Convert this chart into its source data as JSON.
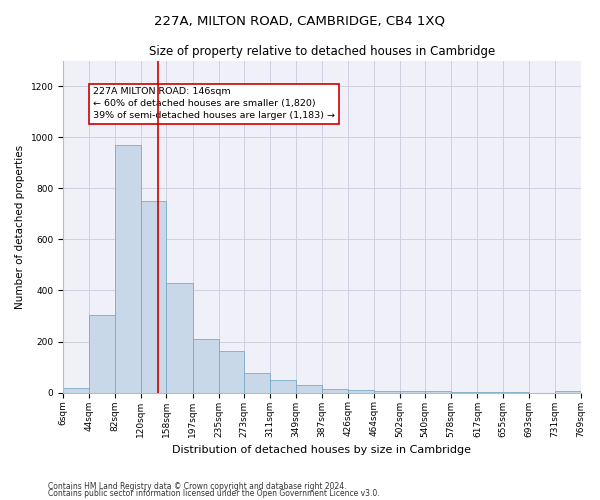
{
  "title": "227A, MILTON ROAD, CAMBRIDGE, CB4 1XQ",
  "subtitle": "Size of property relative to detached houses in Cambridge",
  "xlabel": "Distribution of detached houses by size in Cambridge",
  "ylabel": "Number of detached properties",
  "footnote1": "Contains HM Land Registry data © Crown copyright and database right 2024.",
  "footnote2": "Contains public sector information licensed under the Open Government Licence v3.0.",
  "bar_color": "#c8d8e8",
  "bar_edge_color": "#7aaac8",
  "annotation_line1": "227A MILTON ROAD: 146sqm",
  "annotation_line2": "← 60% of detached houses are smaller (1,820)",
  "annotation_line3": "39% of semi-detached houses are larger (1,183) →",
  "vline_x": 146,
  "vline_color": "#cc0000",
  "bins": [
    6,
    44,
    82,
    120,
    158,
    197,
    235,
    273,
    311,
    349,
    387,
    426,
    464,
    502,
    540,
    578,
    617,
    655,
    693,
    731,
    769
  ],
  "bin_labels": [
    "6sqm",
    "44sqm",
    "82sqm",
    "120sqm",
    "158sqm",
    "197sqm",
    "235sqm",
    "273sqm",
    "311sqm",
    "349sqm",
    "387sqm",
    "426sqm",
    "464sqm",
    "502sqm",
    "540sqm",
    "578sqm",
    "617sqm",
    "655sqm",
    "693sqm",
    "731sqm",
    "769sqm"
  ],
  "counts": [
    20,
    305,
    970,
    750,
    430,
    210,
    165,
    75,
    48,
    28,
    15,
    10,
    8,
    6,
    5,
    3,
    2,
    1,
    0,
    8
  ],
  "ylim": [
    0,
    1300
  ],
  "yticks": [
    0,
    200,
    400,
    600,
    800,
    1000,
    1200
  ],
  "bg_color": "#f0f0f8",
  "grid_color": "#d0d0e0",
  "title_fontsize": 9.5,
  "subtitle_fontsize": 8.5,
  "xlabel_fontsize": 8,
  "ylabel_fontsize": 7.5,
  "tick_fontsize": 6.5,
  "annot_fontsize": 6.8,
  "footnote_fontsize": 5.5
}
